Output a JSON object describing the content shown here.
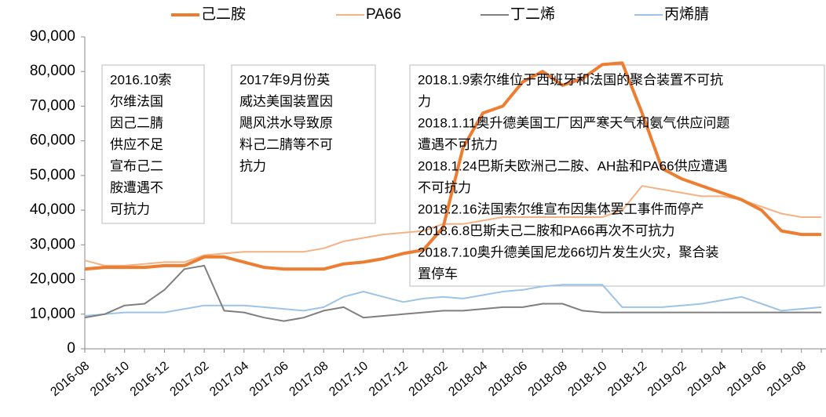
{
  "chart_data": {
    "type": "line",
    "categories": [
      "2016-08",
      null,
      "2016-10",
      null,
      "2016-12",
      null,
      "2017-02",
      null,
      "2017-04",
      null,
      "2017-06",
      null,
      "2017-08",
      null,
      "2017-10",
      null,
      "2017-12",
      null,
      "2018-02",
      null,
      "2018-04",
      null,
      "2018-06",
      null,
      "2018-08",
      null,
      "2018-10",
      null,
      "2018-12",
      null,
      "2019-02",
      null,
      "2019-04",
      null,
      "2019-06",
      null,
      "2019-08",
      null
    ],
    "series": [
      {
        "name": "己二胺",
        "color": "#ed7d31",
        "values": [
          23000,
          23500,
          23500,
          23500,
          24000,
          24000,
          26500,
          26500,
          25000,
          23500,
          23000,
          23000,
          23000,
          24500,
          25000,
          26000,
          27500,
          28500,
          35000,
          58000,
          68000,
          70000,
          77000,
          80000,
          76000,
          78000,
          82000,
          82500,
          68000,
          52000,
          49000,
          47000,
          45000,
          43000,
          40000,
          34000,
          33000,
          33000
        ]
      },
      {
        "name": "PA66",
        "color": "#f4b183",
        "values": [
          25500,
          24000,
          24000,
          24500,
          25000,
          25000,
          27000,
          27500,
          28000,
          28000,
          28000,
          28000,
          29000,
          31000,
          32000,
          33000,
          33500,
          34000,
          36000,
          36000,
          37000,
          38000,
          38000,
          38000,
          38000,
          38000,
          38000,
          40000,
          47000,
          46000,
          45000,
          44000,
          44000,
          43000,
          41000,
          39000,
          38000,
          38000
        ]
      },
      {
        "name": "丁二烯",
        "color": "#7f7f7f",
        "values": [
          9000,
          10000,
          12500,
          13000,
          17000,
          23000,
          24000,
          11000,
          10500,
          9000,
          8000,
          9000,
          11000,
          12000,
          9000,
          9500,
          10000,
          10500,
          11000,
          11000,
          11500,
          12000,
          12000,
          13000,
          13000,
          11000,
          10500,
          10500,
          10500,
          10500,
          10500,
          10500,
          10500,
          10500,
          10500,
          10500,
          10500,
          10500
        ]
      },
      {
        "name": "丙烯腈",
        "color": "#9dc3e6",
        "values": [
          9500,
          10000,
          10500,
          10500,
          10500,
          11500,
          12500,
          12500,
          12500,
          12000,
          11500,
          11000,
          12000,
          15000,
          16500,
          15000,
          13500,
          14500,
          15000,
          14500,
          15500,
          16500,
          17000,
          18000,
          18500,
          18500,
          18500,
          12000,
          12000,
          12000,
          12500,
          13000,
          14000,
          15000,
          13000,
          11000,
          11500,
          12000
        ]
      }
    ],
    "ylim": [
      0,
      90000
    ],
    "yticks": [
      0,
      {
        "value": 10000,
        "label": "10,000"
      },
      {
        "value": 20000,
        "label": "20,000"
      },
      {
        "value": 30000,
        "label": "30,000"
      },
      {
        "value": 40000,
        "label": "40,000"
      },
      {
        "value": 50000,
        "label": "50,000"
      },
      {
        "value": 60000,
        "label": "60,000"
      },
      {
        "value": 70000,
        "label": "70,000"
      },
      {
        "value": 80000,
        "label": "80,000"
      },
      {
        "value": 90000,
        "label": "90,000"
      }
    ],
    "annotations": [
      {
        "lines": [
          "2016.10索",
          "尔维法国",
          "因己二腈",
          "供应不足",
          "宣布己二",
          "胺遭遇不",
          "可抗力"
        ]
      },
      {
        "lines": [
          "2017年9月份英",
          "威达美国装置因",
          "飓风洪水导致原",
          "料己二腈等不可",
          "抗力"
        ]
      },
      {
        "lines": [
          "2018.1.9索尔维位于西班牙和法国的聚合装置不可抗",
          "力",
          "2018.1.11奥升德美国工厂因严寒天气和氨气供应问题",
          "遭遇不可抗力",
          "2018.1.24巴斯夫欧洲己二胺、AH盐和PA66供应遭遇",
          "不可抗力",
          "2018.2.16法国索尔维宣布因集体罢工事件而停产",
          "2018.6.8巴斯夫己二胺和PA66再次不可抗力",
          "2018.7.10奥升德美国尼龙66切片发生火灾，聚合装",
          "置停车"
        ]
      }
    ]
  }
}
